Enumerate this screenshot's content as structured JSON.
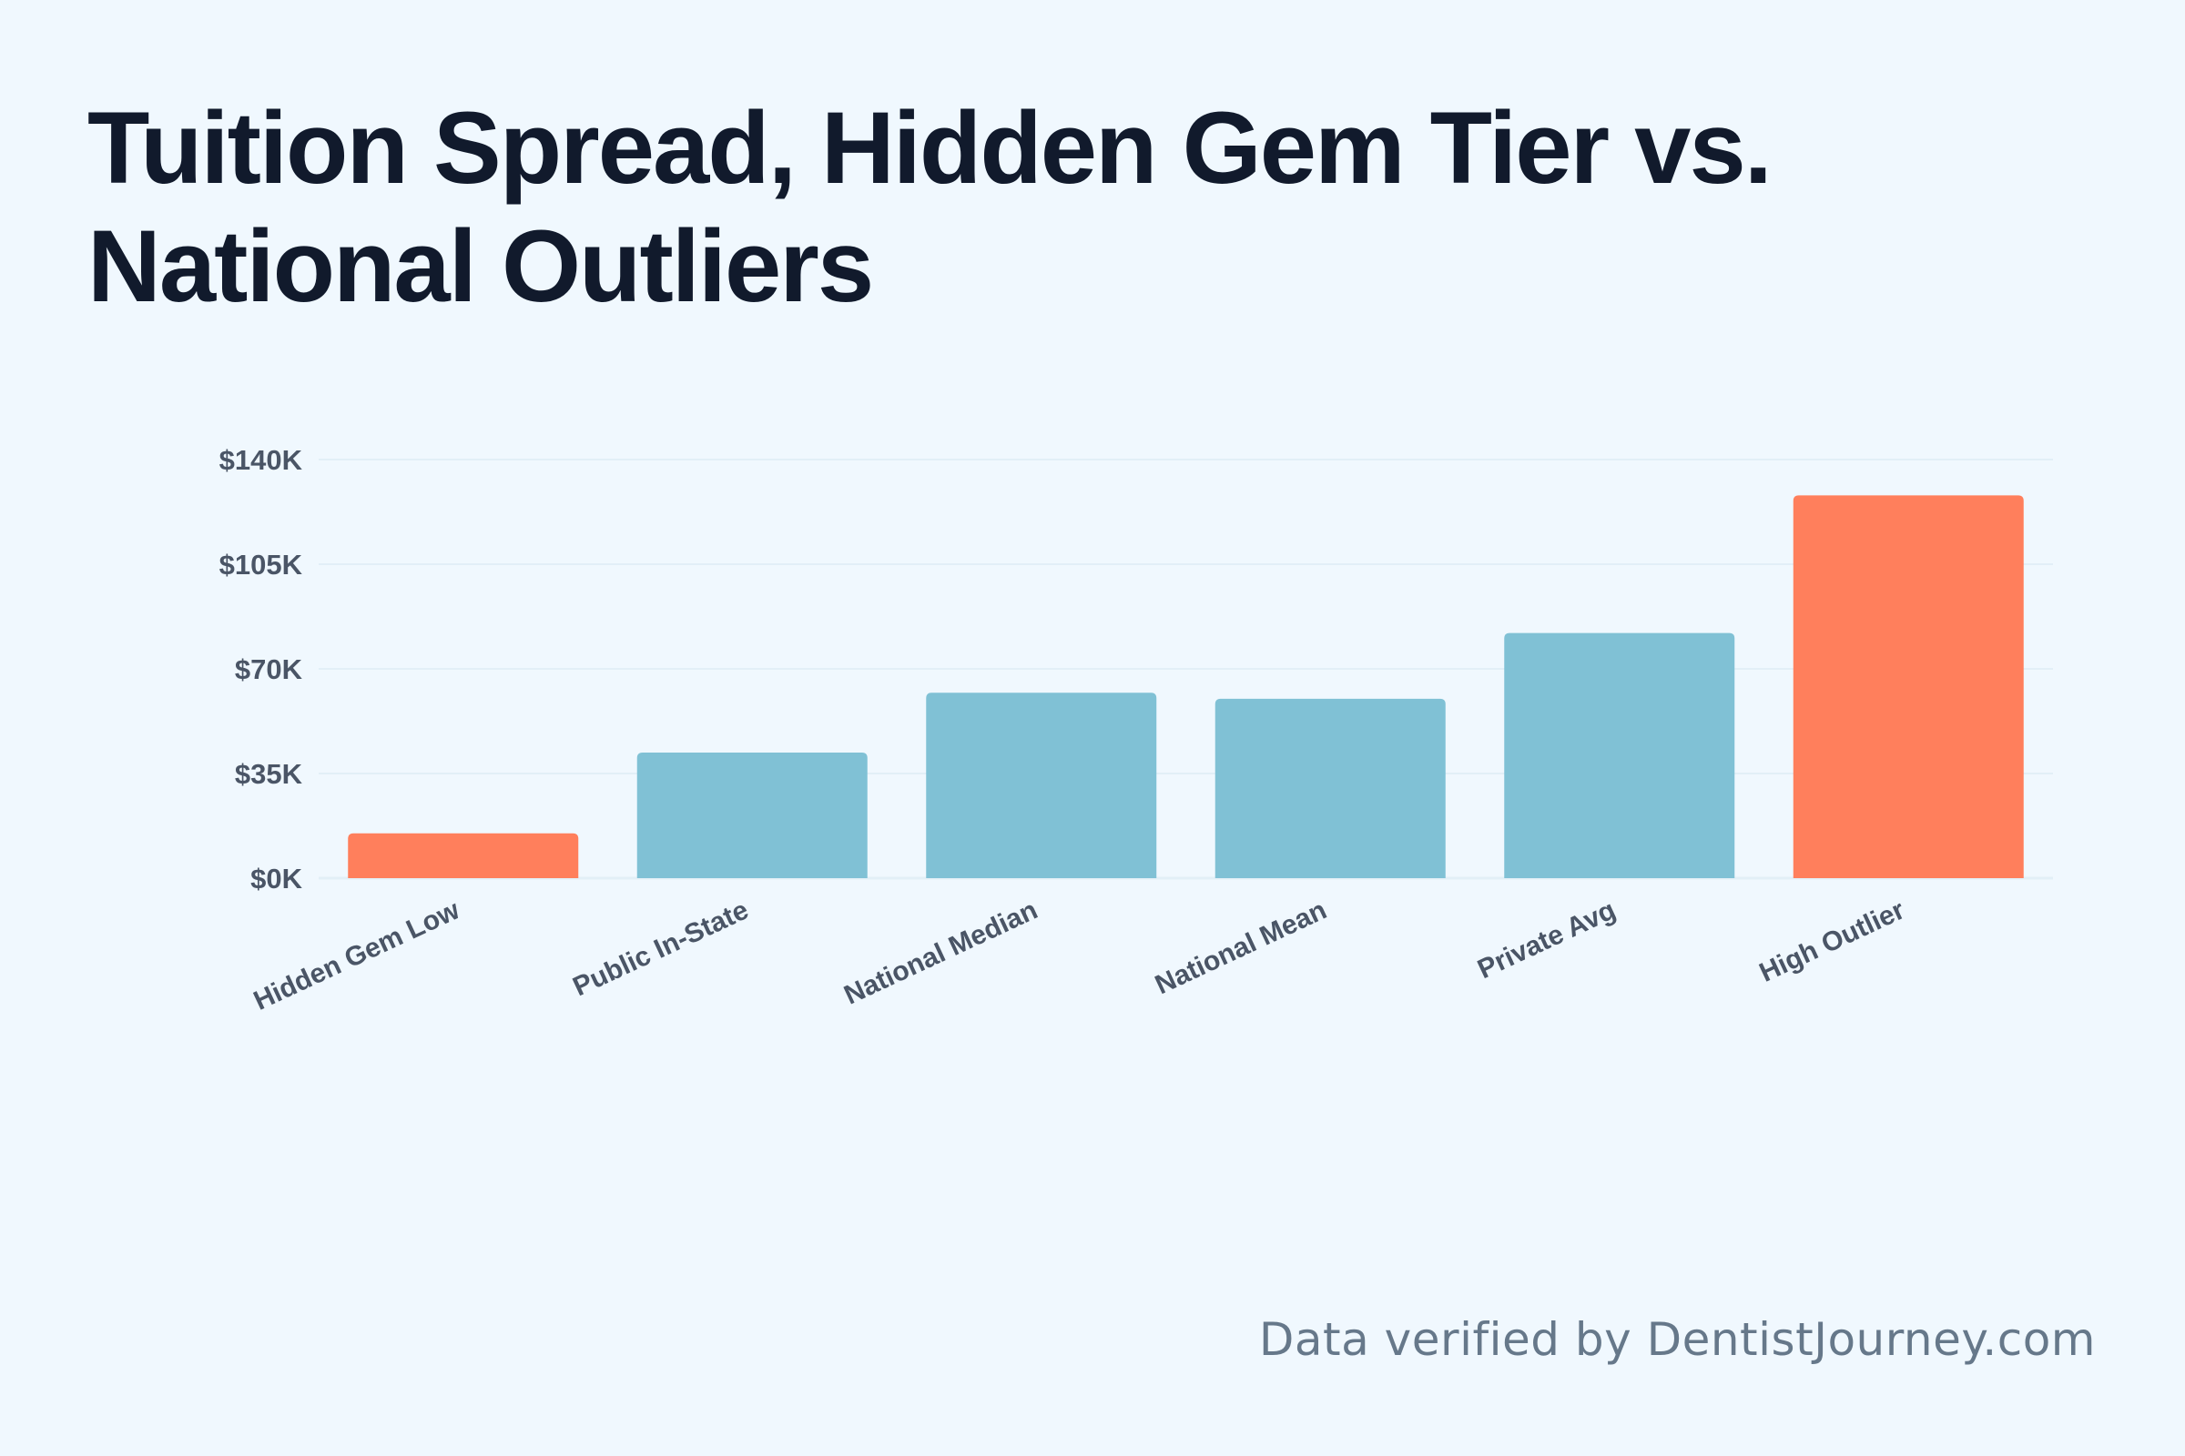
{
  "header": {
    "title": "Tuition Spread, Hidden Gem Tier vs. National Outliers"
  },
  "footer": {
    "note": "Data verified by DentistJourney.com"
  },
  "colors": {
    "background": "#f0f8fe",
    "highlight": "#ff7f5c",
    "standard": "#80c1d5",
    "axis_text": "#4a5566",
    "grid": "#e2eff7"
  },
  "chart_data": {
    "type": "bar",
    "title": "Tuition Spread, Hidden Gem Tier vs. National Outliers",
    "xlabel": "",
    "ylabel": "",
    "ylim": [
      0,
      140000
    ],
    "y_ticks": [
      0,
      35000,
      70000,
      105000,
      140000
    ],
    "y_tick_labels": [
      "$0K",
      "$35K",
      "$70K",
      "$105K",
      "$140K"
    ],
    "grid": true,
    "categories": [
      "Hidden Gem Low",
      "Public In-State",
      "National Median",
      "National Mean",
      "Private Avg",
      "High Outlier"
    ],
    "values": [
      15000,
      42000,
      62000,
      60000,
      82000,
      128000
    ],
    "highlighted": [
      true,
      false,
      false,
      false,
      false,
      true
    ]
  }
}
